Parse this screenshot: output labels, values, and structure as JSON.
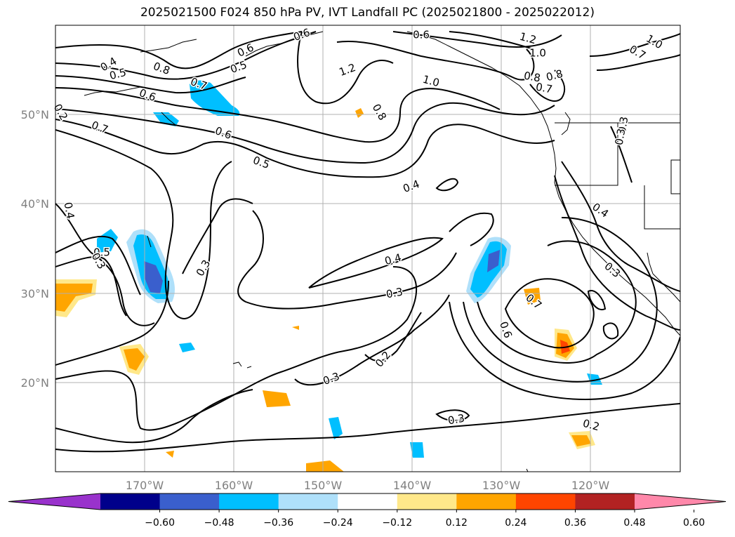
{
  "title": "2025021500 F024 850 hPa PV, IVT Landfall PC (2025021800 - 2025022012)",
  "lat_labels": [
    "50°N",
    "40°N",
    "30°N",
    "20°N"
  ],
  "lon_labels": [
    "170°W",
    "160°W",
    "150°W",
    "140°W",
    "130°W",
    "120°W"
  ],
  "contour_labels": [
    "0.4",
    "0.5",
    "0.8",
    "0.6",
    "0.5",
    "0.6",
    "0.6",
    "1.2",
    "1.0",
    "0.8",
    "0.7",
    "0.8",
    "0.7",
    "0.6",
    "0.7",
    "0.6",
    "0.5",
    "1.2",
    "0.8",
    "1.0",
    "0.4",
    "0.4",
    "0.3",
    "0.3",
    "0.2",
    "0.3",
    "0.4",
    "0.3",
    "0.3",
    "0.3",
    "0.7",
    "0.6",
    "0.4",
    "0.5",
    "0.3",
    "0.2",
    "0.2",
    "1.0",
    "0.7",
    "0.3"
  ],
  "colorbar": {
    "colors": [
      "#9932cc",
      "#00008b",
      "#3a5fcd",
      "#00bfff",
      "#afe0fa",
      "#ffffff",
      "#ffe88a",
      "#ffa500",
      "#ff4500",
      "#b22222",
      "#ff88aa"
    ],
    "ticks": [
      "−0.60",
      "−0.48",
      "−0.36",
      "−0.24",
      "−0.12",
      "0.12",
      "0.24",
      "0.36",
      "0.48",
      "0.60"
    ]
  }
}
